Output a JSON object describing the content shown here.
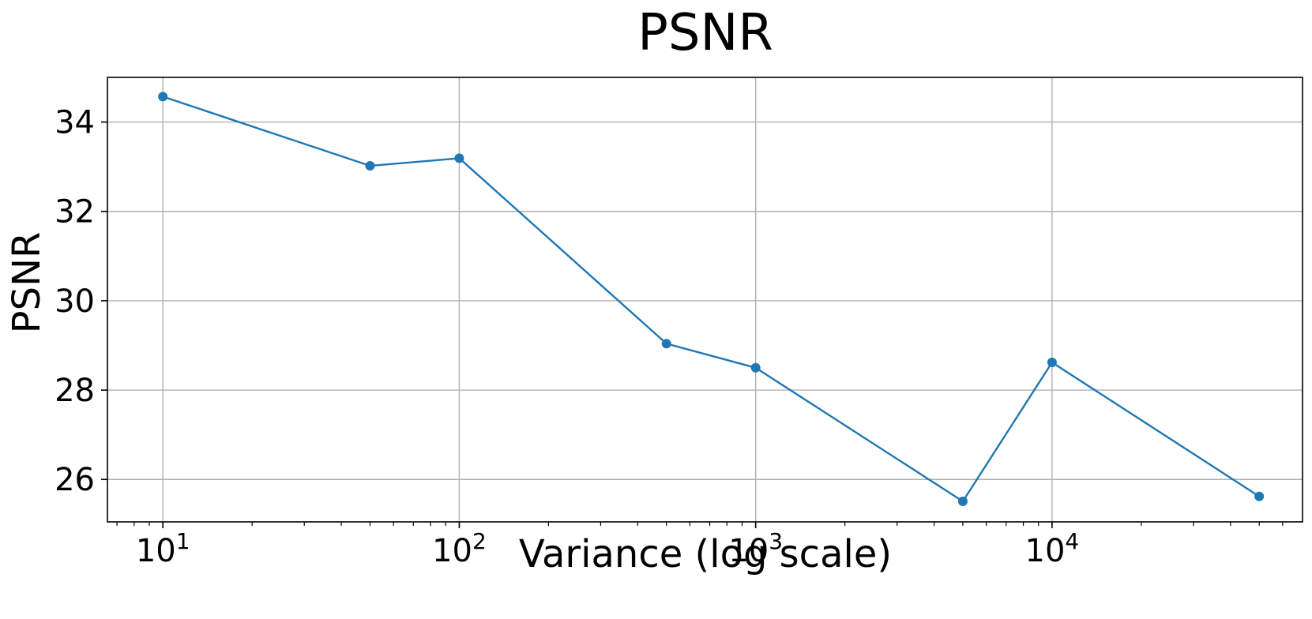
{
  "chart_data": {
    "type": "line",
    "title": "PSNR",
    "xlabel": "Variance (log scale)",
    "ylabel": "PSNR",
    "x_scale": "log",
    "xlim": [
      6.5,
      70000
    ],
    "ylim": [
      25.05,
      35.0
    ],
    "grid": true,
    "legend": "none",
    "x_ticks": [
      {
        "value": 10,
        "base": "10",
        "exp": "1"
      },
      {
        "value": 100,
        "base": "10",
        "exp": "2"
      },
      {
        "value": 1000,
        "base": "10",
        "exp": "3"
      },
      {
        "value": 10000,
        "base": "10",
        "exp": "4"
      }
    ],
    "y_ticks": [
      {
        "value": 26,
        "label": "26"
      },
      {
        "value": 28,
        "label": "28"
      },
      {
        "value": 30,
        "label": "30"
      },
      {
        "value": 32,
        "label": "32"
      },
      {
        "value": 34,
        "label": "34"
      }
    ],
    "series": [
      {
        "color": "#1f77b4",
        "x": [
          10,
          50,
          100,
          500,
          1000,
          5000,
          10000,
          50000
        ],
        "y": [
          34.57,
          33.02,
          33.19,
          29.04,
          28.5,
          25.51,
          28.62,
          25.62
        ]
      }
    ]
  }
}
